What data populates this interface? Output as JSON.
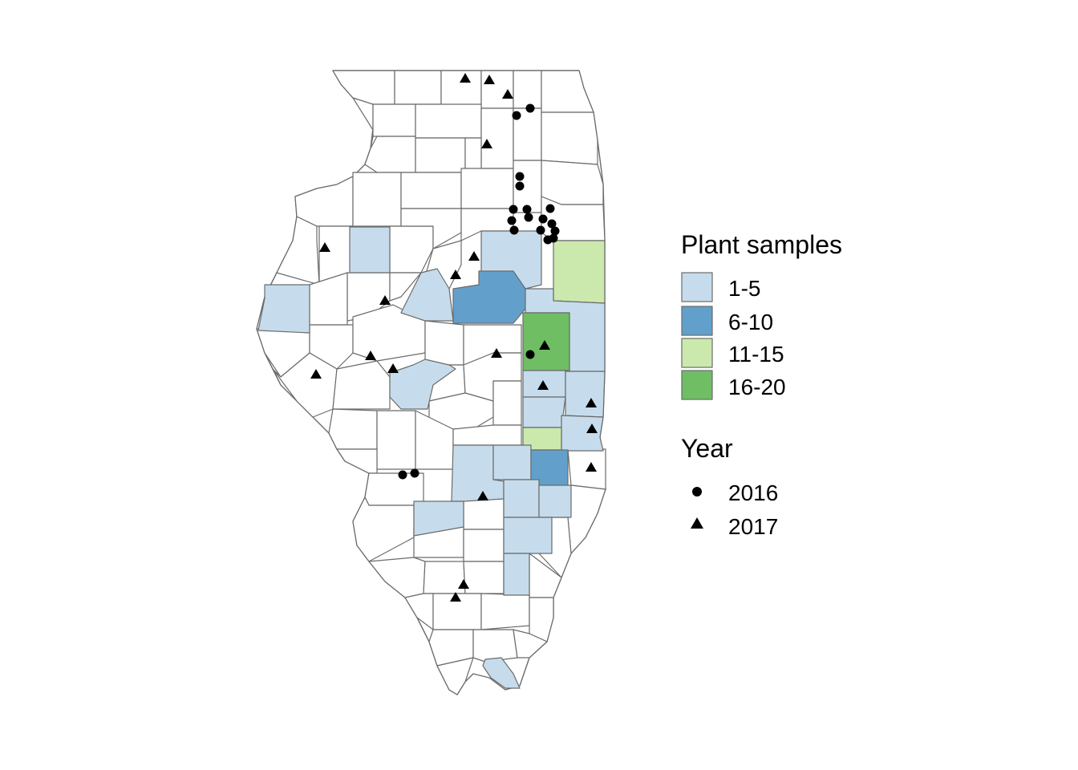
{
  "legend": {
    "fill_title": "Plant samples",
    "fill_items": [
      {
        "label": "1-5",
        "color": "#c6dcec"
      },
      {
        "label": "6-10",
        "color": "#62a0cb"
      },
      {
        "label": "11-15",
        "color": "#cce9ad"
      },
      {
        "label": "16-20",
        "color": "#6fbe64"
      }
    ],
    "shape_title": "Year",
    "shape_items": [
      {
        "label": "2016",
        "shape": "circle"
      },
      {
        "label": "2017",
        "shape": "triangle"
      }
    ]
  },
  "map": {
    "region": "Illinois counties",
    "county_fill_default": "#ffffff",
    "county_stroke": "#6b6b6b"
  }
}
